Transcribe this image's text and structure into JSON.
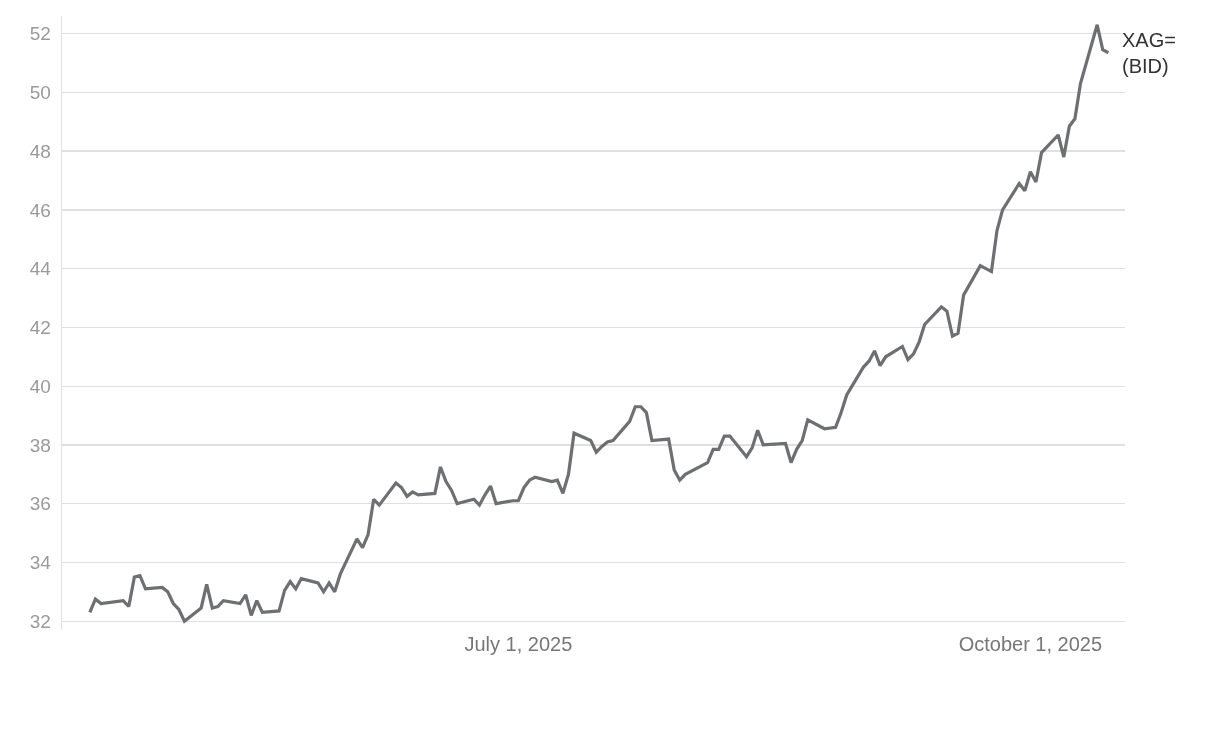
{
  "chart_data": {
    "type": "line",
    "x": [
      "2025-04-15",
      "2025-04-16",
      "2025-04-17",
      "2025-04-21",
      "2025-04-22",
      "2025-04-23",
      "2025-04-24",
      "2025-04-25",
      "2025-04-28",
      "2025-04-29",
      "2025-04-30",
      "2025-05-01",
      "2025-05-02",
      "2025-05-05",
      "2025-05-06",
      "2025-05-07",
      "2025-05-08",
      "2025-05-09",
      "2025-05-12",
      "2025-05-13",
      "2025-05-14",
      "2025-05-15",
      "2025-05-16",
      "2025-05-19",
      "2025-05-20",
      "2025-05-21",
      "2025-05-22",
      "2025-05-23",
      "2025-05-26",
      "2025-05-27",
      "2025-05-28",
      "2025-05-29",
      "2025-05-30",
      "2025-06-02",
      "2025-06-03",
      "2025-06-04",
      "2025-06-05",
      "2025-06-06",
      "2025-06-09",
      "2025-06-10",
      "2025-06-11",
      "2025-06-12",
      "2025-06-13",
      "2025-06-16",
      "2025-06-17",
      "2025-06-18",
      "2025-06-19",
      "2025-06-20",
      "2025-06-23",
      "2025-06-24",
      "2025-06-25",
      "2025-06-26",
      "2025-06-27",
      "2025-06-30",
      "2025-07-01",
      "2025-07-02",
      "2025-07-03",
      "2025-07-04",
      "2025-07-07",
      "2025-07-08",
      "2025-07-09",
      "2025-07-10",
      "2025-07-11",
      "2025-07-14",
      "2025-07-15",
      "2025-07-16",
      "2025-07-17",
      "2025-07-18",
      "2025-07-21",
      "2025-07-22",
      "2025-07-23",
      "2025-07-24",
      "2025-07-25",
      "2025-07-28",
      "2025-07-29",
      "2025-07-30",
      "2025-07-31",
      "2025-08-04",
      "2025-08-05",
      "2025-08-06",
      "2025-08-07",
      "2025-08-08",
      "2025-08-11",
      "2025-08-12",
      "2025-08-13",
      "2025-08-14",
      "2025-08-18",
      "2025-08-19",
      "2025-08-20",
      "2025-08-21",
      "2025-08-22",
      "2025-08-25",
      "2025-08-27",
      "2025-08-28",
      "2025-08-29",
      "2025-09-01",
      "2025-09-02",
      "2025-09-03",
      "2025-09-04",
      "2025-09-05",
      "2025-09-08",
      "2025-09-09",
      "2025-09-10",
      "2025-09-11",
      "2025-09-12",
      "2025-09-15",
      "2025-09-16",
      "2025-09-17",
      "2025-09-18",
      "2025-09-19",
      "2025-09-22",
      "2025-09-24",
      "2025-09-25",
      "2025-09-26",
      "2025-09-29",
      "2025-09-30",
      "2025-10-01",
      "2025-10-02",
      "2025-10-03",
      "2025-10-06",
      "2025-10-07",
      "2025-10-08",
      "2025-10-09",
      "2025-10-10",
      "2025-10-13",
      "2025-10-14",
      "2025-10-15"
    ],
    "series": [
      {
        "name": "XAG= (BID)",
        "color": "#6e6f73",
        "values": [
          32.3,
          32.75,
          32.6,
          32.7,
          32.5,
          33.5,
          33.55,
          33.1,
          33.15,
          33.0,
          32.6,
          32.4,
          32.0,
          32.45,
          33.25,
          32.45,
          32.5,
          32.7,
          32.6,
          32.9,
          32.2,
          32.7,
          32.3,
          32.35,
          33.05,
          33.35,
          33.1,
          33.45,
          33.3,
          33.0,
          33.3,
          33.0,
          33.6,
          34.8,
          34.5,
          34.95,
          36.15,
          35.95,
          36.7,
          36.55,
          36.25,
          36.4,
          36.3,
          36.35,
          37.25,
          36.75,
          36.45,
          36.0,
          36.15,
          35.95,
          36.3,
          36.6,
          36.0,
          36.1,
          36.1,
          36.55,
          36.8,
          36.9,
          36.75,
          36.8,
          36.35,
          37.0,
          38.4,
          38.15,
          37.75,
          37.95,
          38.1,
          38.15,
          38.8,
          39.3,
          39.3,
          39.1,
          38.15,
          38.2,
          37.15,
          36.8,
          37.0,
          37.4,
          37.85,
          37.85,
          38.3,
          38.3,
          37.6,
          37.9,
          38.5,
          38.0,
          38.05,
          37.4,
          37.85,
          38.15,
          38.85,
          38.55,
          38.6,
          39.1,
          39.7,
          40.65,
          40.85,
          41.2,
          40.7,
          41.0,
          41.35,
          40.9,
          41.1,
          41.5,
          42.1,
          42.7,
          42.55,
          41.7,
          41.8,
          43.1,
          44.1,
          43.9,
          45.3,
          46.0,
          46.9,
          46.65,
          47.3,
          46.95,
          47.95,
          48.55,
          47.8,
          48.85,
          49.1,
          50.3,
          52.3,
          51.45,
          51.35
        ]
      }
    ],
    "xlim": [
      "2025-04-10",
      "2025-10-18"
    ],
    "xticks": [
      {
        "value": "2025-07-01",
        "label": "July 1, 2025"
      },
      {
        "value": "2025-10-01",
        "label": "October 1, 2025"
      }
    ],
    "ylim": [
      31.7,
      52.6
    ],
    "yticks": [
      32,
      34,
      36,
      38,
      40,
      42,
      44,
      46,
      48,
      50,
      52
    ],
    "grid": "y",
    "line_style": "solid",
    "marker": "none"
  }
}
